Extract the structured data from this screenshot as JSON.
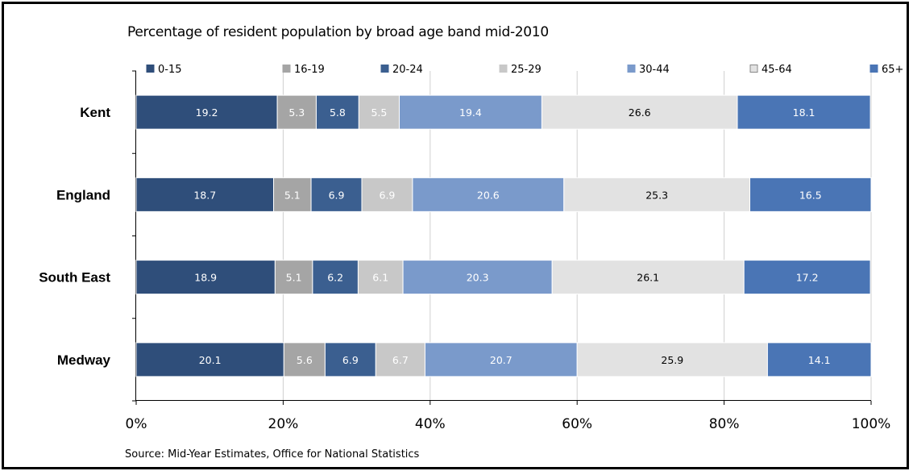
{
  "chart_data": {
    "type": "bar",
    "orientation": "horizontal",
    "stacked": true,
    "title": "Percentage of resident population by broad age band mid-2010",
    "source": "Source: Mid-Year Estimates, Office for National Statistics",
    "categories": [
      "Kent",
      "England",
      "South East",
      "Medway"
    ],
    "xlim": [
      0,
      100
    ],
    "xtick_labels": [
      "0%",
      "20%",
      "40%",
      "60%",
      "80%",
      "100%"
    ],
    "grid": true,
    "legend_position": "top",
    "series": [
      {
        "name": "0-15",
        "color": "#2f4e7a",
        "label_color": "#ffffff",
        "values": [
          19.2,
          18.7,
          18.9,
          20.1
        ],
        "labels": [
          "19.2",
          "18.7",
          "18.9",
          "20.1"
        ]
      },
      {
        "name": "16-19",
        "color": "#a5a5a5",
        "label_color": "#ffffff",
        "values": [
          5.3,
          5.1,
          5.1,
          5.6
        ],
        "labels": [
          "5.3",
          "5.1",
          "5.1",
          "5.6"
        ]
      },
      {
        "name": "20-24",
        "color": "#3b5f90",
        "label_color": "#ffffff",
        "values": [
          5.8,
          6.9,
          6.2,
          6.9
        ],
        "labels": [
          "5.8",
          "6.9",
          "6.2",
          "6.9"
        ]
      },
      {
        "name": "25-29",
        "color": "#c8c8c8",
        "label_color": "#ffffff",
        "values": [
          5.5,
          6.9,
          6.1,
          6.7
        ],
        "labels": [
          "5.5",
          "6.9",
          "6.1",
          "6.7"
        ]
      },
      {
        "name": "30-44",
        "color": "#7a9acb",
        "label_color": "#ffffff",
        "values": [
          19.4,
          20.6,
          20.3,
          20.7
        ],
        "labels": [
          "19.4",
          "20.6",
          "20.3",
          "20.7"
        ]
      },
      {
        "name": "45-64",
        "color": "#e2e2e2",
        "label_color": "#000000",
        "values": [
          26.6,
          25.3,
          26.1,
          25.9
        ],
        "labels": [
          "26.6",
          "25.3",
          "26.1",
          "25.9"
        ]
      },
      {
        "name": "65+",
        "color": "#4a75b5",
        "label_color": "#ffffff",
        "values": [
          18.1,
          16.5,
          17.2,
          14.1
        ],
        "labels": [
          "18.1",
          "16.5",
          "17.2",
          "14.1"
        ]
      }
    ]
  }
}
